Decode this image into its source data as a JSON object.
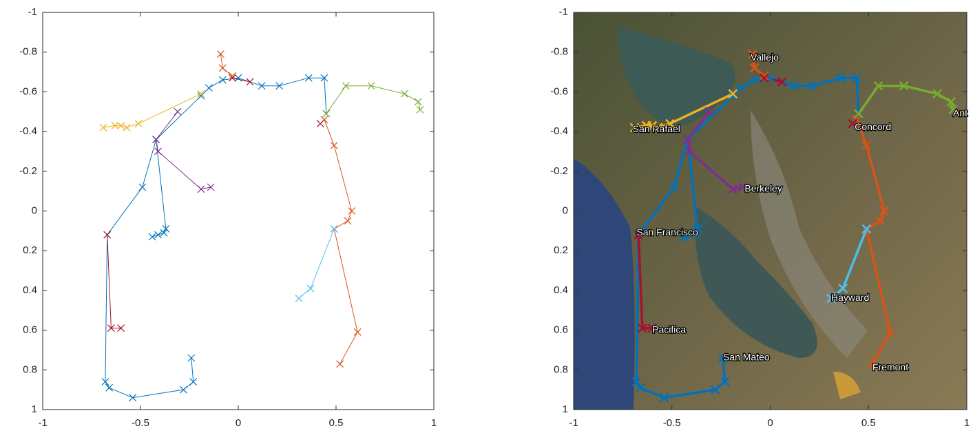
{
  "chart_data": [
    {
      "type": "line",
      "xlim": [
        -1,
        1
      ],
      "ylim": [
        -1,
        1
      ],
      "y_reversed": true,
      "xticks": [
        -1,
        -0.5,
        0,
        0.5,
        1
      ],
      "yticks": [
        -1,
        -0.8,
        -0.6,
        -0.4,
        -0.2,
        0,
        0.2,
        0.4,
        0.6,
        0.8,
        1
      ],
      "series": [
        {
          "color": "#0072BD",
          "x": [
            -0.24,
            -0.23,
            -0.28,
            -0.54,
            -0.66,
            -0.68,
            -0.67,
            -0.49,
            -0.42,
            -0.19,
            -0.15,
            -0.08,
            0,
            0.12,
            0.21,
            0.36,
            0.44,
            0.45
          ],
          "values": [
            0.74,
            0.86,
            0.9,
            0.94,
            0.89,
            0.86,
            0.12,
            -0.12,
            -0.36,
            -0.58,
            -0.62,
            -0.66,
            -0.67,
            -0.63,
            -0.63,
            -0.67,
            -0.67,
            -0.49
          ]
        },
        {
          "color": "#0072BD",
          "x": [
            -0.42,
            -0.37,
            -0.38,
            -0.41,
            -0.44
          ],
          "values": [
            -0.36,
            0.09,
            0.11,
            0.12,
            0.13
          ]
        },
        {
          "color": "#D95319",
          "x": [
            -0.09,
            -0.08,
            -0.03,
            null,
            0.44,
            0.49,
            0.58,
            0.56,
            0.49,
            0.61,
            0.52
          ],
          "values": [
            -0.79,
            -0.72,
            -0.68,
            null,
            -0.46,
            -0.33,
            0,
            0.05,
            0.09,
            0.61,
            0.77
          ]
        },
        {
          "color": "#EDB120",
          "x": [
            -0.69,
            -0.63,
            -0.6,
            -0.57,
            -0.51,
            -0.19
          ],
          "values": [
            -0.42,
            -0.43,
            -0.43,
            -0.42,
            -0.44,
            -0.59
          ]
        },
        {
          "color": "#7E2F8E",
          "x": [
            -0.31,
            -0.42,
            -0.41,
            -0.19,
            -0.14
          ],
          "values": [
            -0.5,
            -0.36,
            -0.3,
            -0.11,
            -0.12
          ]
        },
        {
          "color": "#77AC30",
          "x": [
            0.45,
            0.55,
            0.68,
            0.85,
            0.92,
            0.93
          ],
          "values": [
            -0.49,
            -0.63,
            -0.63,
            -0.59,
            -0.55,
            -0.51
          ]
        },
        {
          "color": "#4DBEEE",
          "x": [
            0.49,
            0.37,
            0.31
          ],
          "values": [
            0.09,
            0.39,
            0.44
          ]
        },
        {
          "color": "#A2142F",
          "x": [
            -0.03,
            0.06,
            null,
            0.42,
            null,
            -0.67,
            -0.65,
            -0.6
          ],
          "values": [
            -0.67,
            -0.65,
            null,
            -0.44,
            null,
            0.12,
            0.59,
            0.59
          ]
        }
      ]
    },
    {
      "type": "line",
      "basemap": true,
      "xlim": [
        -1,
        1
      ],
      "ylim": [
        -1,
        1
      ],
      "y_reversed": true,
      "xticks": [
        -1,
        -0.5,
        0,
        0.5,
        1
      ],
      "yticks": [
        -1,
        -0.8,
        -0.6,
        -0.4,
        -0.2,
        0,
        0.2,
        0.4,
        0.6,
        0.8,
        1
      ],
      "series": [
        {
          "color": "#0072BD",
          "x": [
            -0.24,
            -0.23,
            -0.28,
            -0.54,
            -0.66,
            -0.68,
            -0.67,
            -0.49,
            -0.42,
            -0.19,
            -0.15,
            -0.08,
            0,
            0.12,
            0.21,
            0.36,
            0.44,
            0.45
          ],
          "values": [
            0.74,
            0.86,
            0.9,
            0.94,
            0.89,
            0.86,
            0.12,
            -0.12,
            -0.36,
            -0.58,
            -0.62,
            -0.66,
            -0.67,
            -0.63,
            -0.63,
            -0.67,
            -0.67,
            -0.49
          ]
        },
        {
          "color": "#0072BD",
          "x": [
            -0.42,
            -0.37,
            -0.38,
            -0.41,
            -0.44
          ],
          "values": [
            -0.36,
            0.09,
            0.11,
            0.12,
            0.13
          ]
        },
        {
          "color": "#D95319",
          "x": [
            -0.09,
            -0.08,
            -0.03,
            null,
            0.44,
            0.49,
            0.58,
            0.56,
            0.49,
            0.61,
            0.52
          ],
          "values": [
            -0.79,
            -0.72,
            -0.68,
            null,
            -0.46,
            -0.33,
            0,
            0.05,
            0.09,
            0.61,
            0.77
          ]
        },
        {
          "color": "#EDB120",
          "x": [
            -0.69,
            -0.63,
            -0.6,
            -0.57,
            -0.51,
            -0.19
          ],
          "values": [
            -0.42,
            -0.43,
            -0.43,
            -0.42,
            -0.44,
            -0.59
          ]
        },
        {
          "color": "#7E2F8E",
          "x": [
            -0.31,
            -0.42,
            -0.41,
            -0.19,
            -0.14
          ],
          "values": [
            -0.5,
            -0.36,
            -0.3,
            -0.11,
            -0.12
          ]
        },
        {
          "color": "#77AC30",
          "x": [
            0.45,
            0.55,
            0.68,
            0.85,
            0.92,
            0.93
          ],
          "values": [
            -0.49,
            -0.63,
            -0.63,
            -0.59,
            -0.55,
            -0.51
          ]
        },
        {
          "color": "#4DBEEE",
          "x": [
            0.49,
            0.37,
            0.31
          ],
          "values": [
            0.09,
            0.39,
            0.44
          ]
        },
        {
          "color": "#A2142F",
          "x": [
            -0.03,
            0.06,
            null,
            0.42,
            null,
            -0.67,
            -0.65,
            -0.6
          ],
          "values": [
            -0.67,
            -0.65,
            null,
            -0.44,
            null,
            0.12,
            0.59,
            0.59
          ]
        }
      ],
      "annotations": [
        {
          "text": "Vallejo",
          "x": -0.1,
          "y": -0.77
        },
        {
          "text": "San Rafael",
          "x": -0.7,
          "y": -0.41
        },
        {
          "text": "Berkeley",
          "x": -0.13,
          "y": -0.11
        },
        {
          "text": "San Francisco",
          "x": -0.68,
          "y": 0.11
        },
        {
          "text": "Concord",
          "x": 0.43,
          "y": -0.42
        },
        {
          "text": "Pacifica",
          "x": -0.6,
          "y": 0.6
        },
        {
          "text": "San Mateo",
          "x": -0.24,
          "y": 0.74
        },
        {
          "text": "Hayward",
          "x": 0.31,
          "y": 0.44
        },
        {
          "text": "Fremont",
          "x": 0.52,
          "y": 0.79
        },
        {
          "text": "Ant",
          "x": 0.93,
          "y": -0.49
        }
      ]
    }
  ]
}
